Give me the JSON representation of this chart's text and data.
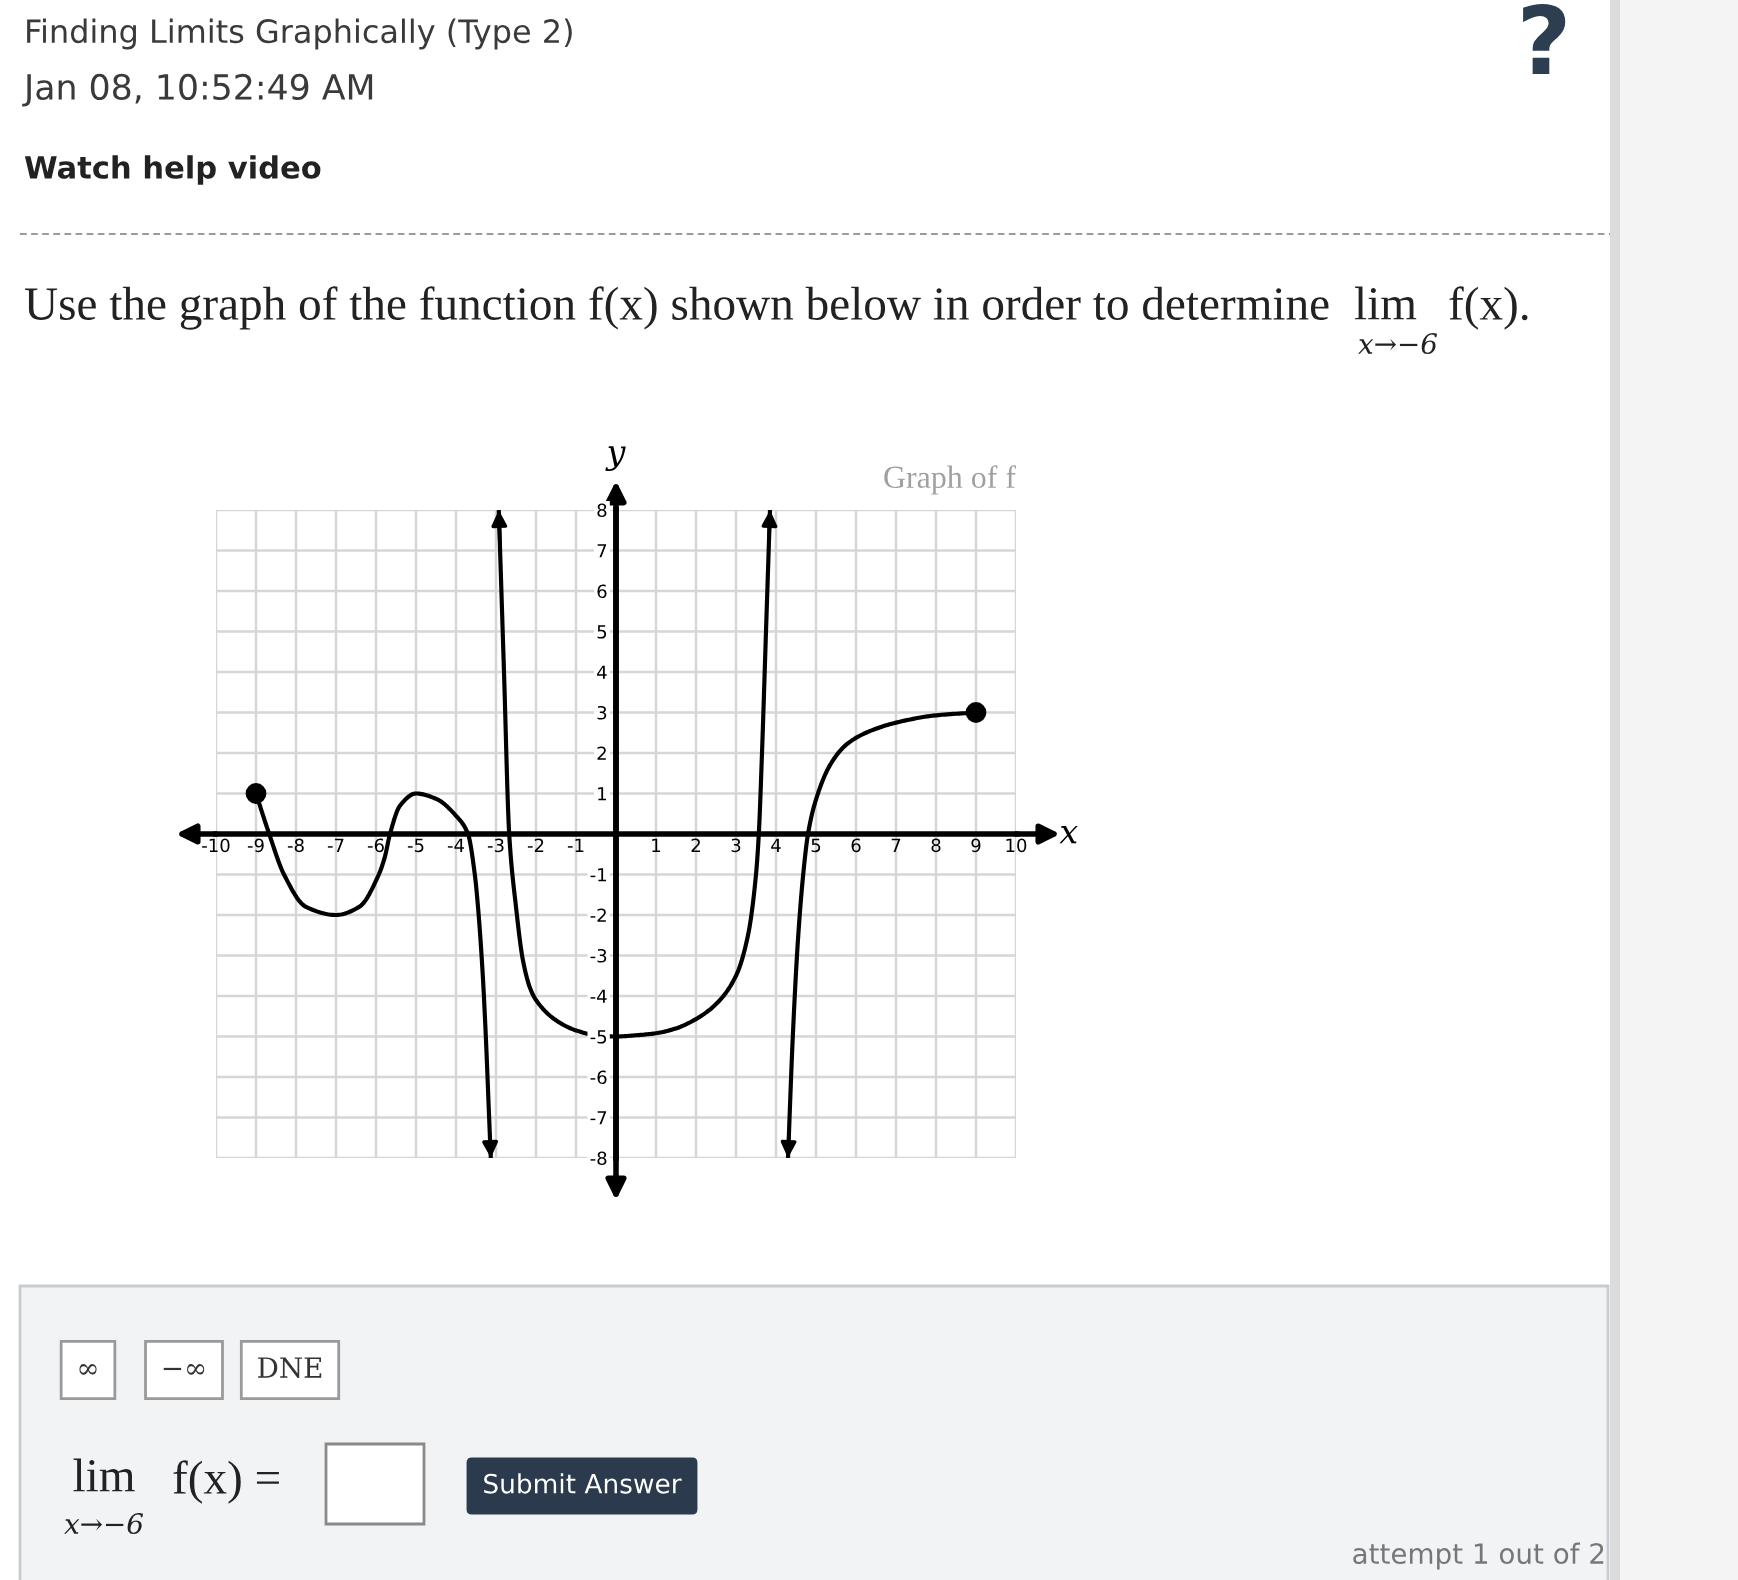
{
  "chart_data": {
    "type": "line",
    "title": "Graph of f",
    "xlabel": "x",
    "ylabel": "y",
    "xlim": [
      -10,
      10
    ],
    "ylim": [
      -8,
      8
    ],
    "xticks": [
      -10,
      -9,
      -8,
      -7,
      -6,
      -5,
      -4,
      -3,
      -2,
      -1,
      1,
      2,
      3,
      4,
      5,
      6,
      7,
      8,
      9,
      10
    ],
    "yticks": [
      -8,
      -7,
      -6,
      -5,
      -4,
      -3,
      -2,
      -1,
      1,
      2,
      3,
      4,
      5,
      6,
      7,
      8
    ],
    "grid": true,
    "series": [
      {
        "color": "#000000",
        "x": [
          -9,
          -8.67,
          -8.3,
          -7.75,
          -7,
          -6.42,
          -5.93,
          -5.78,
          -5.65,
          -5.4,
          -5,
          -4.5,
          -4,
          -3.7,
          -3.53,
          -3.45,
          -3.33,
          -3.25,
          -3.18,
          -3.13
        ],
        "values": [
          1,
          0,
          -1,
          -1.8,
          -2,
          -1.8,
          -1,
          -0.57,
          0,
          0.7,
          1,
          0.87,
          0.45,
          0,
          -1,
          -1.8,
          -3.5,
          -5.1,
          -6.8,
          -8
        ]
      },
      {
        "color": "#000000",
        "x": [
          -2.93,
          -2.8,
          -2.67,
          -2.5,
          -2.33,
          -2.15,
          -2,
          -1.5,
          -1,
          -0.5,
          0,
          0.5,
          1,
          1.5,
          2,
          2.5,
          3,
          3.3,
          3.5,
          3.57,
          3.65,
          3.75,
          3.85
        ],
        "values": [
          8,
          4,
          0,
          -1.8,
          -3.1,
          -3.8,
          -4.1,
          -4.6,
          -4.85,
          -4.97,
          -5,
          -4.97,
          -4.92,
          -4.8,
          -4.57,
          -4.2,
          -3.5,
          -2.5,
          -1,
          0,
          2,
          5,
          8
        ]
      },
      {
        "color": "#000000",
        "x": [
          4.3,
          4.42,
          4.55,
          4.68,
          4.8,
          5,
          5.35,
          5.75,
          6.25,
          7,
          8,
          9
        ],
        "values": [
          -8,
          -5,
          -2.6,
          -1,
          0,
          0.85,
          1.7,
          2.2,
          2.5,
          2.75,
          2.93,
          3
        ]
      },
      {
        "type": "scatter",
        "color": "#000000",
        "marker": "circle",
        "x": [
          -9,
          9
        ],
        "values": [
          1,
          3
        ]
      }
    ],
    "annotations": [
      "Finding Limits Graphically (Type 2)",
      "Jan 08, 10:52:49 AM",
      "Watch help video",
      "?",
      "Use the graph of the function f(x) shown below in order to determine",
      "lim",
      "x→−6",
      "f(x).",
      "∞",
      "−∞",
      "DNE",
      "lim",
      "x→−6",
      "f(x) =",
      "Submit Answer",
      "attempt 1 out of 2"
    ]
  }
}
